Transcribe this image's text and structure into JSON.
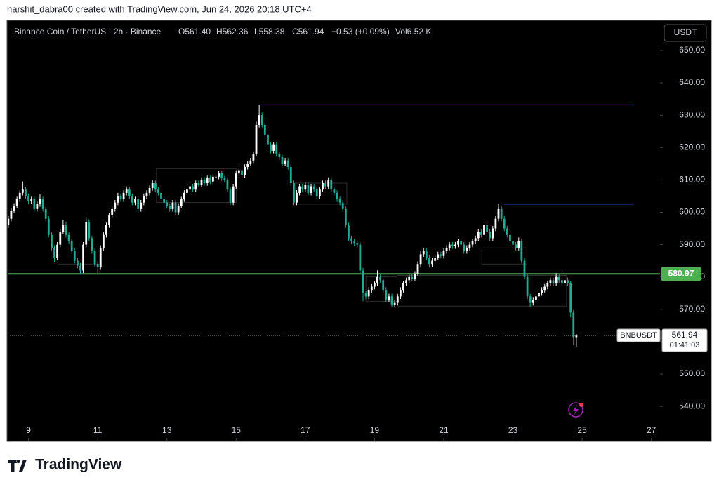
{
  "header": {
    "text": "harshit_dabra00 created with TradingView.com, Jun 24, 2026 20:18 UTC+4"
  },
  "footer": {
    "brand": "TradingView"
  },
  "chart_data": {
    "type": "candlestick",
    "legend": [
      "Binance Coin / TetherUS · 2h · Binance",
      "O561.40",
      "H562.36",
      "L558.38",
      "C561.94",
      "+0.53 (+0.09%)",
      "Vol6.52 K"
    ],
    "currency": "USDT",
    "symbol": "BNBUSDT",
    "countdown": "01:41:03",
    "up_color": "#ffffff",
    "down_color": "#22ab94",
    "xlim": [
      8.4,
      27.25
    ],
    "xticks": [
      9,
      11,
      13,
      15,
      17,
      19,
      21,
      23,
      25,
      27
    ],
    "ylim": [
      529.4,
      659.1
    ],
    "yticks": [
      {
        "value": 540,
        "label": "540.00"
      },
      {
        "value": 550,
        "label": "550.00"
      },
      {
        "value": 560,
        "label": "560.00"
      },
      {
        "value": 570,
        "label": "570.00"
      },
      {
        "value": 580,
        "label": "580.00"
      },
      {
        "value": 590,
        "label": "590.00"
      },
      {
        "value": 600,
        "label": "600.00"
      },
      {
        "value": 610,
        "label": "610.00"
      },
      {
        "value": 620,
        "label": "620.00"
      },
      {
        "value": 630,
        "label": "630.00"
      },
      {
        "value": 640,
        "label": "640.00"
      },
      {
        "value": 650,
        "label": "650.00"
      }
    ],
    "level": {
      "value": 580.97,
      "color": "#4caf50"
    },
    "rays": [
      {
        "value": 633.2,
        "from": 15.65,
        "to": 26.5,
        "color": "#2b3fd6"
      },
      {
        "value": 602.5,
        "from": 22.75,
        "to": 26.5,
        "color": "#2b3fd6"
      }
    ],
    "zones": [
      {
        "x": [
          9.85,
          11.06
        ],
        "y": [
          581,
          584
        ]
      },
      {
        "x": [
          12.7,
          15.0
        ],
        "y": [
          603,
          613.5
        ]
      },
      {
        "x": [
          16.7,
          18.2
        ],
        "y": [
          602.5,
          609
        ]
      },
      {
        "x": [
          18.75,
          19.65
        ],
        "y": [
          572.5,
          580
        ]
      },
      {
        "x": [
          19.65,
          24.55
        ],
        "y": [
          571,
          580.5
        ]
      },
      {
        "x": [
          22.1,
          23.4
        ],
        "y": [
          584,
          589
        ]
      }
    ],
    "x": [
      8.417,
      8.5,
      8.583,
      8.667,
      8.75,
      8.833,
      8.917,
      9,
      9.083,
      9.167,
      9.25,
      9.333,
      9.417,
      9.5,
      9.583,
      9.667,
      9.75,
      9.833,
      9.917,
      10,
      10.083,
      10.167,
      10.25,
      10.333,
      10.417,
      10.5,
      10.583,
      10.667,
      10.75,
      10.833,
      10.917,
      11,
      11.083,
      11.167,
      11.25,
      11.333,
      11.417,
      11.5,
      11.583,
      11.667,
      11.75,
      11.833,
      11.917,
      12,
      12.083,
      12.167,
      12.25,
      12.333,
      12.417,
      12.5,
      12.583,
      12.667,
      12.75,
      12.833,
      12.917,
      13,
      13.083,
      13.167,
      13.25,
      13.333,
      13.417,
      13.5,
      13.583,
      13.667,
      13.75,
      13.833,
      13.917,
      14,
      14.083,
      14.167,
      14.25,
      14.333,
      14.417,
      14.5,
      14.583,
      14.667,
      14.75,
      14.833,
      14.917,
      15,
      15.083,
      15.167,
      15.25,
      15.333,
      15.417,
      15.5,
      15.583,
      15.667,
      15.75,
      15.833,
      15.917,
      16,
      16.083,
      16.167,
      16.25,
      16.333,
      16.417,
      16.5,
      16.583,
      16.667,
      16.75,
      16.833,
      16.917,
      17,
      17.083,
      17.167,
      17.25,
      17.333,
      17.417,
      17.5,
      17.583,
      17.667,
      17.75,
      17.833,
      17.917,
      18,
      18.083,
      18.167,
      18.25,
      18.333,
      18.417,
      18.5,
      18.583,
      18.667,
      18.75,
      18.833,
      18.917,
      19,
      19.083,
      19.167,
      19.25,
      19.333,
      19.417,
      19.5,
      19.583,
      19.667,
      19.75,
      19.833,
      19.917,
      20,
      20.083,
      20.167,
      20.25,
      20.333,
      20.417,
      20.5,
      20.583,
      20.667,
      20.75,
      20.833,
      20.917,
      21,
      21.083,
      21.167,
      21.25,
      21.333,
      21.417,
      21.5,
      21.583,
      21.667,
      21.75,
      21.833,
      21.917,
      22,
      22.083,
      22.167,
      22.25,
      22.333,
      22.417,
      22.5,
      22.583,
      22.667,
      22.75,
      22.833,
      22.917,
      23,
      23.083,
      23.167,
      23.25,
      23.333,
      23.417,
      23.5,
      23.583,
      23.667,
      23.75,
      23.833,
      23.917,
      24,
      24.083,
      24.167,
      24.25,
      24.333,
      24.417,
      24.5,
      24.583,
      24.667,
      24.75,
      24.833
    ],
    "ohlc": [
      [
        596,
        598.8,
        595.2,
        598
      ],
      [
        598,
        601.3,
        597.2,
        600.5
      ],
      [
        600.5,
        602.8,
        599.7,
        602
      ],
      [
        602,
        604.8,
        601.2,
        604
      ],
      [
        604,
        606.8,
        603.2,
        606
      ],
      [
        606,
        609.5,
        605.2,
        607
      ],
      [
        607,
        607.8,
        604.2,
        605
      ],
      [
        605,
        605.8,
        602.7,
        603.5
      ],
      [
        603.5,
        604.8,
        602.7,
        604
      ],
      [
        604,
        604.8,
        600.2,
        601
      ],
      [
        601,
        603.3,
        600.2,
        602.5
      ],
      [
        602.5,
        605.5,
        601.7,
        604
      ],
      [
        604,
        604.8,
        600.2,
        601
      ],
      [
        601,
        601.8,
        597.2,
        598
      ],
      [
        598,
        598.8,
        592.2,
        593
      ],
      [
        593,
        593.8,
        588.2,
        589
      ],
      [
        589,
        589.8,
        584.5,
        586
      ],
      [
        586,
        590.8,
        585.2,
        590
      ],
      [
        590,
        594.8,
        589.2,
        594
      ],
      [
        594,
        597.5,
        593.2,
        596
      ],
      [
        596,
        596.8,
        592.2,
        593
      ],
      [
        593,
        593.8,
        590.2,
        591
      ],
      [
        591,
        591.8,
        587.2,
        588
      ],
      [
        588,
        588.8,
        584.2,
        585
      ],
      [
        585,
        585.8,
        582.7,
        583.5
      ],
      [
        583.5,
        584.3,
        580.8,
        582
      ],
      [
        582,
        590.8,
        581.2,
        590
      ],
      [
        590,
        598.5,
        589.2,
        597
      ],
      [
        597,
        597.8,
        591.2,
        592
      ],
      [
        592,
        592.8,
        587.2,
        588
      ],
      [
        588,
        588.8,
        583.2,
        584
      ],
      [
        584,
        584.8,
        581.2,
        583
      ],
      [
        583,
        589.8,
        582.2,
        589
      ],
      [
        589,
        593.8,
        588.2,
        593
      ],
      [
        593,
        596.8,
        592.2,
        596
      ],
      [
        596,
        599.8,
        595.2,
        599
      ],
      [
        599,
        601.8,
        598.2,
        601
      ],
      [
        601,
        603.8,
        600.2,
        603
      ],
      [
        603,
        606,
        602.2,
        605
      ],
      [
        605,
        605.8,
        603.2,
        604
      ],
      [
        604,
        606.8,
        603.2,
        606
      ],
      [
        606,
        608,
        605.2,
        607
      ],
      [
        607,
        607.8,
        604.2,
        605
      ],
      [
        605,
        605.8,
        602.2,
        603
      ],
      [
        603,
        604.8,
        602.2,
        604
      ],
      [
        604,
        604.8,
        600.2,
        601
      ],
      [
        601,
        603.8,
        600.2,
        603
      ],
      [
        603,
        605.8,
        602.2,
        605
      ],
      [
        605,
        606.8,
        604.2,
        606
      ],
      [
        606,
        608.3,
        605.2,
        607.5
      ],
      [
        607.5,
        610,
        606.7,
        609
      ],
      [
        609,
        609.8,
        606.2,
        607
      ],
      [
        607,
        607.8,
        605.2,
        606
      ],
      [
        606,
        606.8,
        603.2,
        604
      ],
      [
        604,
        604.8,
        602.2,
        603
      ],
      [
        603,
        603.8,
        601.2,
        602
      ],
      [
        602,
        602.8,
        600.2,
        601
      ],
      [
        601,
        603.8,
        600.2,
        603
      ],
      [
        603,
        603.8,
        599.2,
        600
      ],
      [
        600,
        602.8,
        599.2,
        602
      ],
      [
        602,
        604.8,
        601.2,
        604
      ],
      [
        604,
        606.8,
        603.2,
        606
      ],
      [
        606,
        607.8,
        605.2,
        607
      ],
      [
        607,
        608.8,
        606.2,
        608
      ],
      [
        608,
        608.8,
        606.2,
        607
      ],
      [
        607,
        609.8,
        606.2,
        609
      ],
      [
        609,
        609.8,
        607.7,
        608.5
      ],
      [
        608.5,
        610.8,
        607.7,
        610
      ],
      [
        610,
        610.8,
        608.2,
        609
      ],
      [
        609,
        611.3,
        608.2,
        610.5
      ],
      [
        610.5,
        611.3,
        608.7,
        609.5
      ],
      [
        609.5,
        611.8,
        608.7,
        611
      ],
      [
        611,
        612,
        610.2,
        611
      ],
      [
        611,
        612.8,
        610.2,
        612
      ],
      [
        612,
        612.8,
        609.7,
        610.5
      ],
      [
        610.5,
        611.3,
        609.2,
        610
      ],
      [
        610,
        610.8,
        606.2,
        607
      ],
      [
        607,
        607.8,
        602.2,
        603
      ],
      [
        603,
        608.8,
        602.2,
        608
      ],
      [
        608,
        612.8,
        607.2,
        612
      ],
      [
        612,
        613.8,
        611.2,
        613
      ],
      [
        613,
        613.8,
        610.7,
        611.5
      ],
      [
        611.5,
        614.8,
        610.7,
        614
      ],
      [
        614,
        615.8,
        613.2,
        615
      ],
      [
        615,
        616.8,
        614.2,
        616
      ],
      [
        616,
        618.8,
        615.2,
        618
      ],
      [
        618,
        628,
        617.2,
        627
      ],
      [
        627,
        633.2,
        626.2,
        630
      ],
      [
        630,
        630.8,
        626.2,
        627
      ],
      [
        627,
        627.8,
        623.2,
        624
      ],
      [
        624,
        624.8,
        620.2,
        621
      ],
      [
        621,
        621.8,
        618.2,
        619
      ],
      [
        619,
        621.8,
        618.2,
        621
      ],
      [
        621,
        621.8,
        617.2,
        618
      ],
      [
        618,
        618.8,
        616.2,
        617
      ],
      [
        617,
        617.8,
        614.2,
        615
      ],
      [
        615,
        616.8,
        614.2,
        616
      ],
      [
        616,
        616.8,
        613.2,
        614
      ],
      [
        614,
        614.8,
        608.2,
        609
      ],
      [
        609,
        609.8,
        602.2,
        603
      ],
      [
        603,
        606.8,
        602.2,
        606
      ],
      [
        606,
        608.8,
        605.2,
        608
      ],
      [
        608,
        608.8,
        606.2,
        607
      ],
      [
        607,
        609.3,
        606.2,
        608.5
      ],
      [
        608.5,
        609.3,
        605.2,
        606
      ],
      [
        606,
        608.8,
        605.2,
        608
      ],
      [
        608,
        608.8,
        606.2,
        607
      ],
      [
        607,
        607.8,
        604.2,
        605
      ],
      [
        605,
        607.8,
        604.2,
        607
      ],
      [
        607,
        609.8,
        606.2,
        609
      ],
      [
        609,
        609.8,
        607.2,
        608
      ],
      [
        608,
        610.8,
        607.2,
        610
      ],
      [
        610,
        610.8,
        606.2,
        607
      ],
      [
        607,
        607.8,
        605.2,
        606
      ],
      [
        606,
        606.8,
        603.2,
        604
      ],
      [
        604,
        604.8,
        602.2,
        603
      ],
      [
        603,
        603.8,
        600.2,
        601
      ],
      [
        601,
        601.8,
        595.2,
        596
      ],
      [
        596,
        596.8,
        591.2,
        592
      ],
      [
        592,
        592.8,
        590.2,
        591
      ],
      [
        591,
        591.8,
        589.7,
        590.5
      ],
      [
        590.5,
        591.3,
        589.2,
        590
      ],
      [
        590,
        590.8,
        581.2,
        582
      ],
      [
        582,
        582.8,
        572.5,
        575
      ],
      [
        575,
        575.8,
        573.2,
        574
      ],
      [
        574,
        576.8,
        573.2,
        576
      ],
      [
        576,
        577.8,
        575.2,
        577
      ],
      [
        577,
        578.8,
        576.2,
        578
      ],
      [
        578,
        582,
        577.2,
        580
      ],
      [
        580,
        580.8,
        578.2,
        579
      ],
      [
        579,
        579.8,
        575.2,
        576
      ],
      [
        576,
        576.8,
        572.2,
        573
      ],
      [
        573,
        574.8,
        572.2,
        574
      ],
      [
        574,
        574.8,
        570.8,
        571.5
      ],
      [
        571.5,
        572.8,
        570.7,
        572
      ],
      [
        572,
        574.8,
        571.2,
        574
      ],
      [
        574,
        576.8,
        573.2,
        576
      ],
      [
        576,
        578.8,
        575.2,
        578
      ],
      [
        578,
        579.8,
        577.2,
        579
      ],
      [
        579,
        580.8,
        578.2,
        580
      ],
      [
        580,
        580.8,
        578.7,
        579.5
      ],
      [
        579.5,
        581.8,
        578.7,
        581
      ],
      [
        581,
        584.8,
        580.2,
        584
      ],
      [
        584,
        588,
        583.2,
        587
      ],
      [
        587,
        588.8,
        586.2,
        588
      ],
      [
        588,
        588.8,
        585.2,
        586
      ],
      [
        586,
        586.8,
        583.2,
        584
      ],
      [
        584,
        585.8,
        583.2,
        585
      ],
      [
        585,
        586.8,
        584.2,
        586
      ],
      [
        586,
        587.8,
        585.2,
        587
      ],
      [
        587,
        587.8,
        585.7,
        586.5
      ],
      [
        586.5,
        588.8,
        585.7,
        588
      ],
      [
        588,
        589.8,
        587.2,
        589
      ],
      [
        589,
        590.8,
        588.2,
        590
      ],
      [
        590,
        590.8,
        588.7,
        589.5
      ],
      [
        589.5,
        590.8,
        588.7,
        590
      ],
      [
        590,
        591.8,
        589.2,
        591
      ],
      [
        591,
        591.8,
        589.2,
        590
      ],
      [
        590,
        590.8,
        587.2,
        588
      ],
      [
        588,
        589.8,
        587.2,
        589
      ],
      [
        589,
        590.8,
        588.2,
        590
      ],
      [
        590,
        591.8,
        589.2,
        591
      ],
      [
        591,
        592.8,
        590.2,
        592
      ],
      [
        592,
        594.8,
        591.2,
        594
      ],
      [
        594,
        594.8,
        592.2,
        593
      ],
      [
        593,
        596.8,
        592.2,
        596
      ],
      [
        596,
        596.8,
        593.2,
        594
      ],
      [
        594,
        594.8,
        591.2,
        592
      ],
      [
        592,
        595.8,
        591.2,
        595
      ],
      [
        595,
        598.8,
        594.2,
        598
      ],
      [
        598,
        602.5,
        597.2,
        601
      ],
      [
        601,
        601.8,
        597.2,
        598
      ],
      [
        598,
        598.8,
        594.2,
        595
      ],
      [
        595,
        595.8,
        592.2,
        593
      ],
      [
        593,
        593.8,
        590.2,
        591
      ],
      [
        591,
        591.8,
        589.2,
        590
      ],
      [
        590,
        590.8,
        588.2,
        589
      ],
      [
        589,
        592.2,
        588.2,
        591
      ],
      [
        591,
        591.8,
        584.2,
        585
      ],
      [
        585,
        585.8,
        579.2,
        580
      ],
      [
        580,
        580.8,
        573.2,
        574
      ],
      [
        574,
        574.8,
        570.8,
        572
      ],
      [
        572,
        573.8,
        571.2,
        573
      ],
      [
        573,
        574.8,
        572.2,
        574
      ],
      [
        574,
        575.8,
        573.2,
        575
      ],
      [
        575,
        576.8,
        574.2,
        576
      ],
      [
        576,
        577.8,
        575.2,
        577
      ],
      [
        577,
        578.8,
        576.2,
        578
      ],
      [
        578,
        579.8,
        577.2,
        579
      ],
      [
        579,
        579.8,
        577.2,
        578
      ],
      [
        578,
        581.2,
        577.2,
        580
      ],
      [
        580,
        580.8,
        578.2,
        579
      ],
      [
        579,
        579.8,
        577.2,
        578
      ],
      [
        578,
        581,
        577.2,
        579
      ],
      [
        579,
        579.8,
        577.2,
        578
      ],
      [
        578,
        578.8,
        567.5,
        569
      ],
      [
        569,
        569.8,
        559,
        561.4
      ],
      [
        561.4,
        562.36,
        558.38,
        561.94
      ]
    ]
  }
}
